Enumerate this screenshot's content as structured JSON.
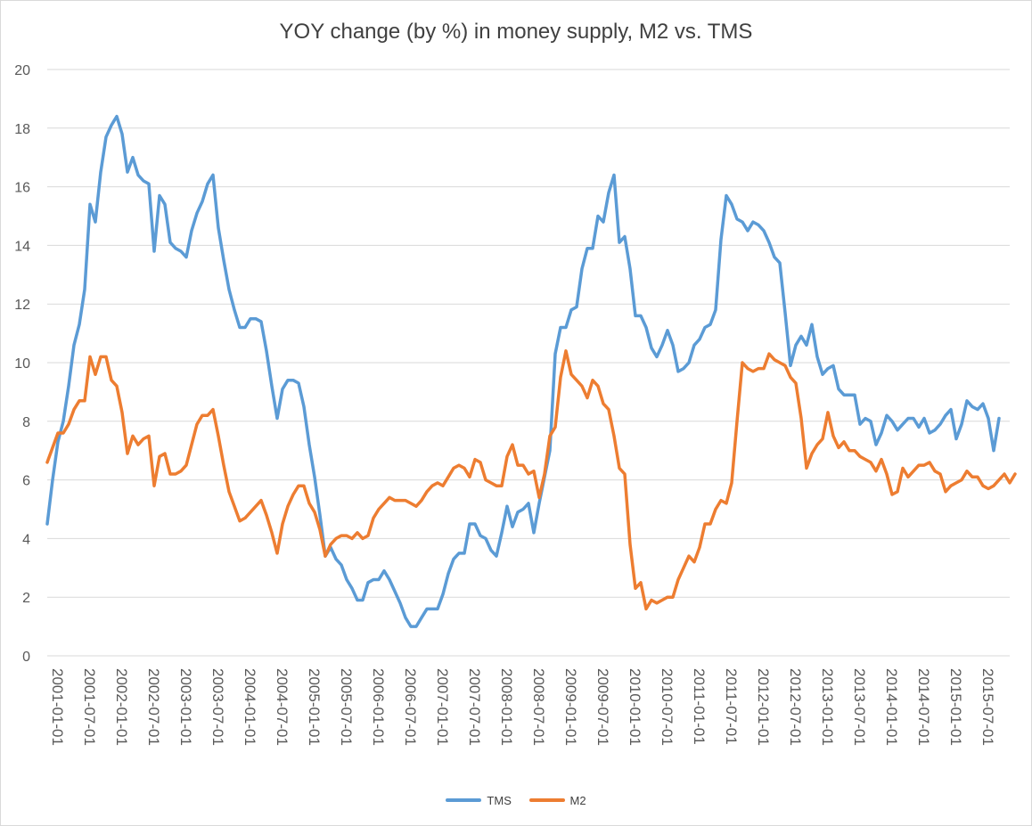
{
  "chart_data": {
    "type": "line",
    "title": "YOY change (by %) in money supply, M2 vs. TMS",
    "xlabel": "",
    "ylabel": "",
    "ylim": [
      0,
      20
    ],
    "yticks": [
      0,
      2,
      4,
      6,
      8,
      10,
      12,
      14,
      16,
      18,
      20
    ],
    "grid": "horizontal",
    "legend_position": "bottom",
    "x_start": "2001-01",
    "x_frequency": "monthly",
    "x_tick_labels": [
      "2001-01-01",
      "2001-07-01",
      "2002-01-01",
      "2002-07-01",
      "2003-01-01",
      "2003-07-01",
      "2004-01-01",
      "2004-07-01",
      "2005-01-01",
      "2005-07-01",
      "2006-01-01",
      "2006-07-01",
      "2007-01-01",
      "2007-07-01",
      "2008-01-01",
      "2008-07-01",
      "2009-01-01",
      "2009-07-01",
      "2010-01-01",
      "2010-07-01",
      "2011-01-01",
      "2011-07-01",
      "2012-01-01",
      "2012-07-01",
      "2013-01-01",
      "2013-07-01",
      "2014-01-01",
      "2014-07-01",
      "2015-01-01",
      "2015-07-01"
    ],
    "series": [
      {
        "name": "TMS",
        "color": "#5b9bd5",
        "values": [
          4.5,
          6,
          7.3,
          8,
          9.2,
          10.6,
          11.3,
          12.5,
          15.4,
          14.8,
          16.5,
          17.7,
          18.1,
          18.4,
          17.8,
          16.5,
          17,
          16.4,
          16.2,
          16.1,
          13.8,
          15.7,
          15.4,
          14.1,
          13.9,
          13.8,
          13.6,
          14.5,
          15.1,
          15.5,
          16.1,
          16.4,
          14.6,
          13.5,
          12.5,
          11.8,
          11.2,
          11.2,
          11.5,
          11.5,
          11.4,
          10.4,
          9.2,
          8.1,
          9.1,
          9.4,
          9.4,
          9.3,
          8.5,
          7.2,
          6.1,
          4.8,
          3.4,
          3.7,
          3.3,
          3.1,
          2.6,
          2.3,
          1.9,
          1.9,
          2.5,
          2.6,
          2.6,
          2.9,
          2.6,
          2.2,
          1.8,
          1.3,
          1,
          1,
          1.3,
          1.6,
          1.6,
          1.6,
          2.1,
          2.8,
          3.3,
          3.5,
          3.5,
          4.5,
          4.5,
          4.1,
          4,
          3.6,
          3.4,
          4.2,
          5.1,
          4.4,
          4.9,
          5,
          5.2,
          4.2,
          5.2,
          6.1,
          7,
          10.3,
          11.2,
          11.2,
          11.8,
          11.9,
          13.2,
          13.9,
          13.9,
          15,
          14.8,
          15.8,
          16.4,
          14.1,
          14.3,
          13.2,
          11.6,
          11.6,
          11.2,
          10.5,
          10.2,
          10.6,
          11.1,
          10.6,
          9.7,
          9.8,
          10,
          10.6,
          10.8,
          11.2,
          11.3,
          11.8,
          14.2,
          15.7,
          15.4,
          14.9,
          14.8,
          14.5,
          14.8,
          14.7,
          14.5,
          14.1,
          13.6,
          13.4,
          11.7,
          9.9,
          10.6,
          10.9,
          10.6,
          11.3,
          10.2,
          9.6,
          9.8,
          9.9,
          9.1,
          8.9,
          8.9,
          8.9,
          7.9,
          8.1,
          8,
          7.2,
          7.6,
          8.2,
          8,
          7.7,
          7.9,
          8.1,
          8.1,
          7.8,
          8.1,
          7.6,
          7.7,
          7.9,
          8.2,
          8.4,
          7.4,
          7.9,
          8.7,
          8.5,
          8.4,
          8.6,
          8.1,
          7,
          8.1
        ]
      },
      {
        "name": "M2",
        "color": "#ed7d31",
        "values": [
          6.6,
          7.1,
          7.6,
          7.6,
          7.9,
          8.4,
          8.7,
          8.7,
          10.2,
          9.6,
          10.2,
          10.2,
          9.4,
          9.2,
          8.3,
          6.9,
          7.5,
          7.2,
          7.4,
          7.5,
          5.8,
          6.8,
          6.9,
          6.2,
          6.2,
          6.3,
          6.5,
          7.2,
          7.9,
          8.2,
          8.2,
          8.4,
          7.5,
          6.5,
          5.6,
          5.1,
          4.6,
          4.7,
          4.9,
          5.1,
          5.3,
          4.8,
          4.2,
          3.5,
          4.5,
          5.1,
          5.5,
          5.8,
          5.8,
          5.2,
          4.9,
          4.3,
          3.4,
          3.8,
          4,
          4.1,
          4.1,
          4,
          4.2,
          4,
          4.1,
          4.7,
          5,
          5.2,
          5.4,
          5.3,
          5.3,
          5.3,
          5.2,
          5.1,
          5.3,
          5.6,
          5.8,
          5.9,
          5.8,
          6.1,
          6.4,
          6.5,
          6.4,
          6.1,
          6.7,
          6.6,
          6,
          5.9,
          5.8,
          5.8,
          6.8,
          7.2,
          6.5,
          6.5,
          6.2,
          6.3,
          5.4,
          6.2,
          7.5,
          7.8,
          9.5,
          10.4,
          9.6,
          9.4,
          9.2,
          8.8,
          9.4,
          9.2,
          8.6,
          8.4,
          7.5,
          6.4,
          6.2,
          3.8,
          2.3,
          2.5,
          1.6,
          1.9,
          1.8,
          1.9,
          2,
          2,
          2.6,
          3,
          3.4,
          3.2,
          3.7,
          4.5,
          4.5,
          5,
          5.3,
          5.2,
          5.9,
          8,
          10,
          9.8,
          9.7,
          9.8,
          9.8,
          10.3,
          10.1,
          10,
          9.9,
          9.5,
          9.3,
          8.1,
          6.4,
          6.9,
          7.2,
          7.4,
          8.3,
          7.5,
          7.1,
          7.3,
          7,
          7,
          6.8,
          6.7,
          6.6,
          6.3,
          6.7,
          6.2,
          5.5,
          5.6,
          6.4,
          6.1,
          6.3,
          6.5,
          6.5,
          6.6,
          6.3,
          6.2,
          5.6,
          5.8,
          5.9,
          6,
          6.3,
          6.1,
          6.1,
          5.8,
          5.7,
          5.8,
          6,
          6.2,
          5.9,
          6.2
        ]
      }
    ]
  }
}
